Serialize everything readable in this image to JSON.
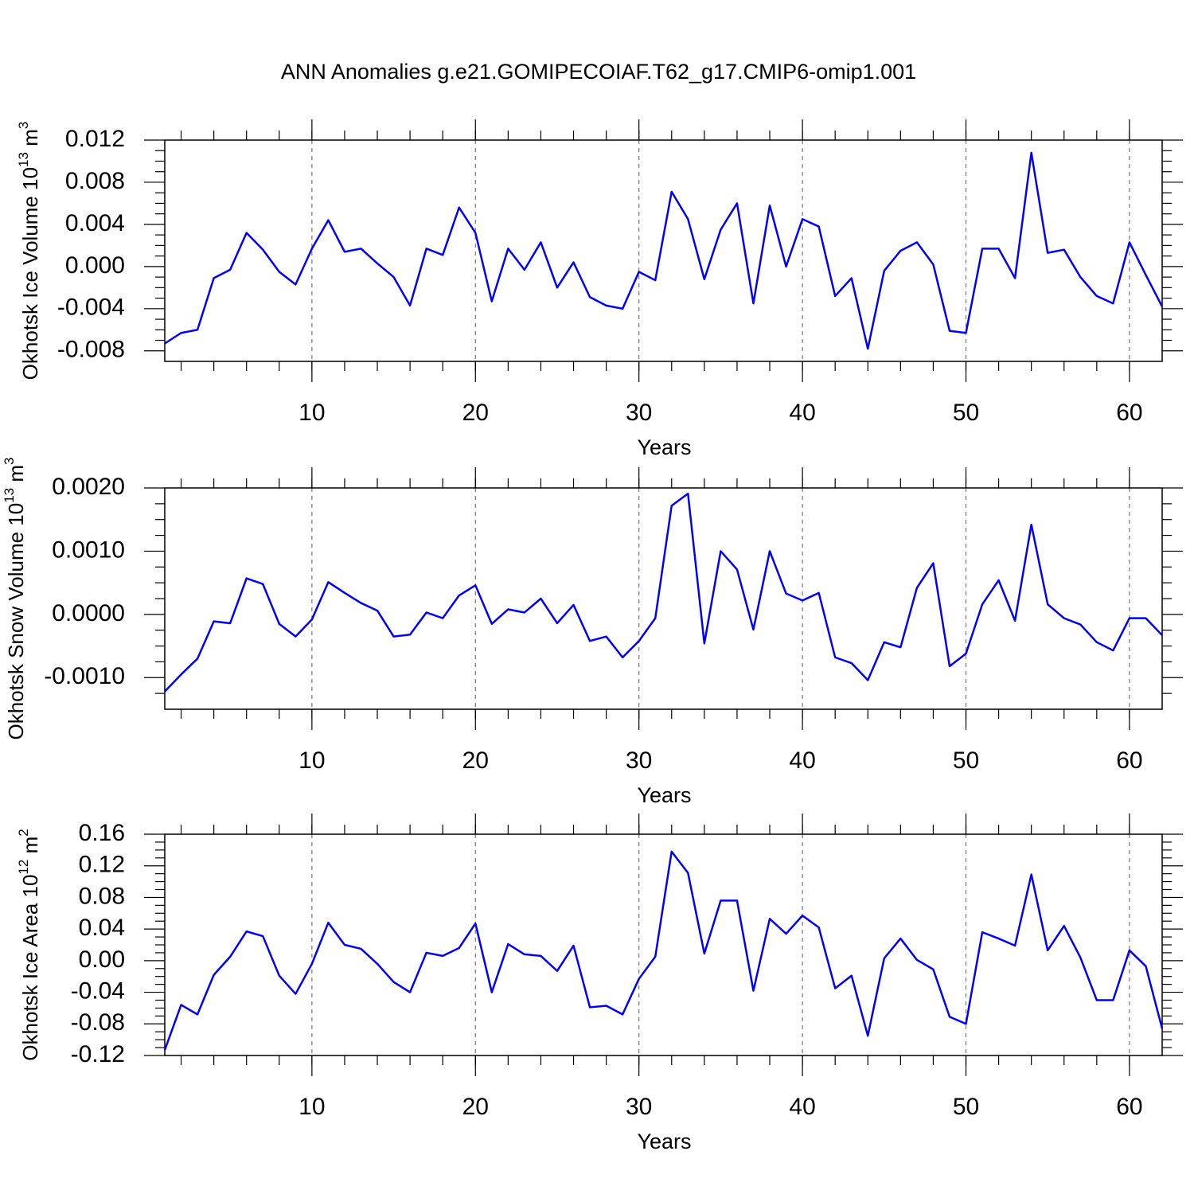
{
  "chart_data": [
    {
      "type": "line",
      "title": "ANN Anomalies g.e21.GOMIPECOIAF.T62_g17.CMIP6-omip1.001",
      "xlabel": "Years",
      "ylabel": [
        "Okhotsk Ice Volume 10",
        "13",
        " m",
        "3"
      ],
      "x": [
        1,
        2,
        3,
        4,
        5,
        6,
        7,
        8,
        9,
        10,
        11,
        12,
        13,
        14,
        15,
        16,
        17,
        18,
        19,
        20,
        21,
        22,
        23,
        24,
        25,
        26,
        27,
        28,
        29,
        30,
        31,
        32,
        33,
        34,
        35,
        36,
        37,
        38,
        39,
        40,
        41,
        42,
        43,
        44,
        45,
        46,
        47,
        48,
        49,
        50,
        51,
        52,
        53,
        54,
        55,
        56,
        57,
        58,
        59,
        60,
        61,
        62
      ],
      "series": [
        {
          "color": "#0000ff",
          "values": [
            -0.0073,
            -0.0063,
            -0.006,
            -0.0011,
            -0.0003,
            0.0032,
            0.0016,
            -0.0005,
            -0.0017,
            0.0017,
            0.0044,
            0.0014,
            0.0017,
            0.0003,
            -0.001,
            -0.0037,
            0.0017,
            0.0011,
            0.0056,
            0.0032,
            -0.0033,
            0.0017,
            -0.0003,
            0.0023,
            -0.002,
            0.0004,
            -0.0029,
            -0.0037,
            -0.004,
            -0.0005,
            -0.0013,
            0.0071,
            0.0045,
            -0.0012,
            0.0035,
            0.006,
            -0.0035,
            0.0058,
            0.0,
            0.0045,
            0.0038,
            -0.0028,
            -0.0011,
            -0.0078,
            -0.0004,
            0.0015,
            0.0023,
            0.0002,
            -0.0061,
            -0.0063,
            0.0017,
            0.0017,
            -0.0011,
            0.0108,
            0.0013,
            0.0016,
            -0.001,
            -0.0028,
            -0.0035,
            0.0023,
            -0.0008,
            -0.0038
          ]
        }
      ],
      "xlim": [
        1,
        62
      ],
      "xticks": [
        10,
        20,
        30,
        40,
        50,
        60
      ],
      "ylim": [
        -0.009,
        0.012
      ],
      "yticks": [
        -0.008,
        -0.004,
        {
          "value": 0,
          "label": "0.000"
        },
        0.004,
        0.008,
        0.012
      ],
      "grid": true
    },
    {
      "type": "line",
      "xlabel": "Years",
      "ylabel": [
        "Okhotsk Snow Volume 10",
        "13",
        " m",
        "3"
      ],
      "x": [
        1,
        2,
        3,
        4,
        5,
        6,
        7,
        8,
        9,
        10,
        11,
        12,
        13,
        14,
        15,
        16,
        17,
        18,
        19,
        20,
        21,
        22,
        23,
        24,
        25,
        26,
        27,
        28,
        29,
        30,
        31,
        32,
        33,
        34,
        35,
        36,
        37,
        38,
        39,
        40,
        41,
        42,
        43,
        44,
        45,
        46,
        47,
        48,
        49,
        50,
        51,
        52,
        53,
        54,
        55,
        56,
        57,
        58,
        59,
        60,
        61,
        62
      ],
      "series": [
        {
          "color": "#0000ff",
          "values": [
            -0.00122,
            -0.00095,
            -0.0007,
            -0.00011,
            -0.00014,
            0.00057,
            0.00048,
            -0.00015,
            -0.00035,
            -8e-05,
            0.00051,
            0.00034,
            0.00018,
            6e-05,
            -0.00035,
            -0.00032,
            3e-05,
            -6e-05,
            0.0003,
            0.00046,
            -0.00015,
            8e-05,
            3e-05,
            0.00025,
            -0.00014,
            0.00015,
            -0.00042,
            -0.00035,
            -0.00068,
            -0.00042,
            -6e-05,
            0.00172,
            0.00191,
            -0.00046,
            0.001,
            0.00071,
            -0.00024,
            0.001,
            0.00033,
            0.00022,
            0.00034,
            -0.00068,
            -0.00077,
            -0.00104,
            -0.00044,
            -0.00052,
            0.00042,
            0.00081,
            -0.00082,
            -0.00062,
            0.00016,
            0.00054,
            -0.0001,
            0.00142,
            0.00016,
            -6e-05,
            -0.00016,
            -0.00044,
            -0.00057,
            -6e-05,
            -6e-05,
            -0.00033
          ]
        }
      ],
      "xlim": [
        1,
        62
      ],
      "xticks": [
        10,
        20,
        30,
        40,
        50,
        60
      ],
      "ylim": [
        -0.0015,
        0.002
      ],
      "yticks": [
        {
          "value": -0.001,
          "label": "-0.0010"
        },
        {
          "value": 0,
          "label": "0.0000"
        },
        {
          "value": 0.001,
          "label": "0.0010"
        },
        {
          "value": 0.002,
          "label": "0.0020"
        }
      ],
      "grid": true
    },
    {
      "type": "line",
      "xlabel": "Years",
      "ylabel": [
        "Okhotsk Ice Area 10",
        "12",
        " m",
        "2"
      ],
      "x": [
        1,
        2,
        3,
        4,
        5,
        6,
        7,
        8,
        9,
        10,
        11,
        12,
        13,
        14,
        15,
        16,
        17,
        18,
        19,
        20,
        21,
        22,
        23,
        24,
        25,
        26,
        27,
        28,
        29,
        30,
        31,
        32,
        33,
        34,
        35,
        36,
        37,
        38,
        39,
        40,
        41,
        42,
        43,
        44,
        45,
        46,
        47,
        48,
        49,
        50,
        51,
        52,
        53,
        54,
        55,
        56,
        57,
        58,
        59,
        60,
        61,
        62
      ],
      "series": [
        {
          "color": "#0000ff",
          "values": [
            -0.113,
            -0.056,
            -0.068,
            -0.018,
            0.005,
            0.037,
            0.031,
            -0.019,
            -0.042,
            -0.004,
            0.048,
            0.02,
            0.015,
            -0.004,
            -0.027,
            -0.04,
            0.01,
            0.006,
            0.016,
            0.047,
            -0.04,
            0.021,
            0.008,
            0.006,
            -0.013,
            0.019,
            -0.059,
            -0.057,
            -0.068,
            -0.023,
            0.005,
            0.138,
            0.111,
            0.009,
            0.076,
            0.076,
            -0.038,
            0.053,
            0.034,
            0.057,
            0.042,
            -0.035,
            -0.019,
            -0.095,
            0.003,
            0.028,
            0.001,
            -0.011,
            -0.071,
            -0.08,
            0.036,
            0.028,
            0.019,
            0.109,
            0.013,
            0.044,
            0.004,
            -0.05,
            -0.05,
            0.013,
            -0.007,
            -0.086
          ]
        }
      ],
      "xlim": [
        1,
        62
      ],
      "xticks": [
        10,
        20,
        30,
        40,
        50,
        60
      ],
      "ylim": [
        -0.12,
        0.16
      ],
      "yticks": [
        -0.12,
        -0.08,
        -0.04,
        {
          "value": 0,
          "label": "0.00"
        },
        0.04,
        0.08,
        0.12,
        0.16
      ],
      "grid": true
    }
  ]
}
